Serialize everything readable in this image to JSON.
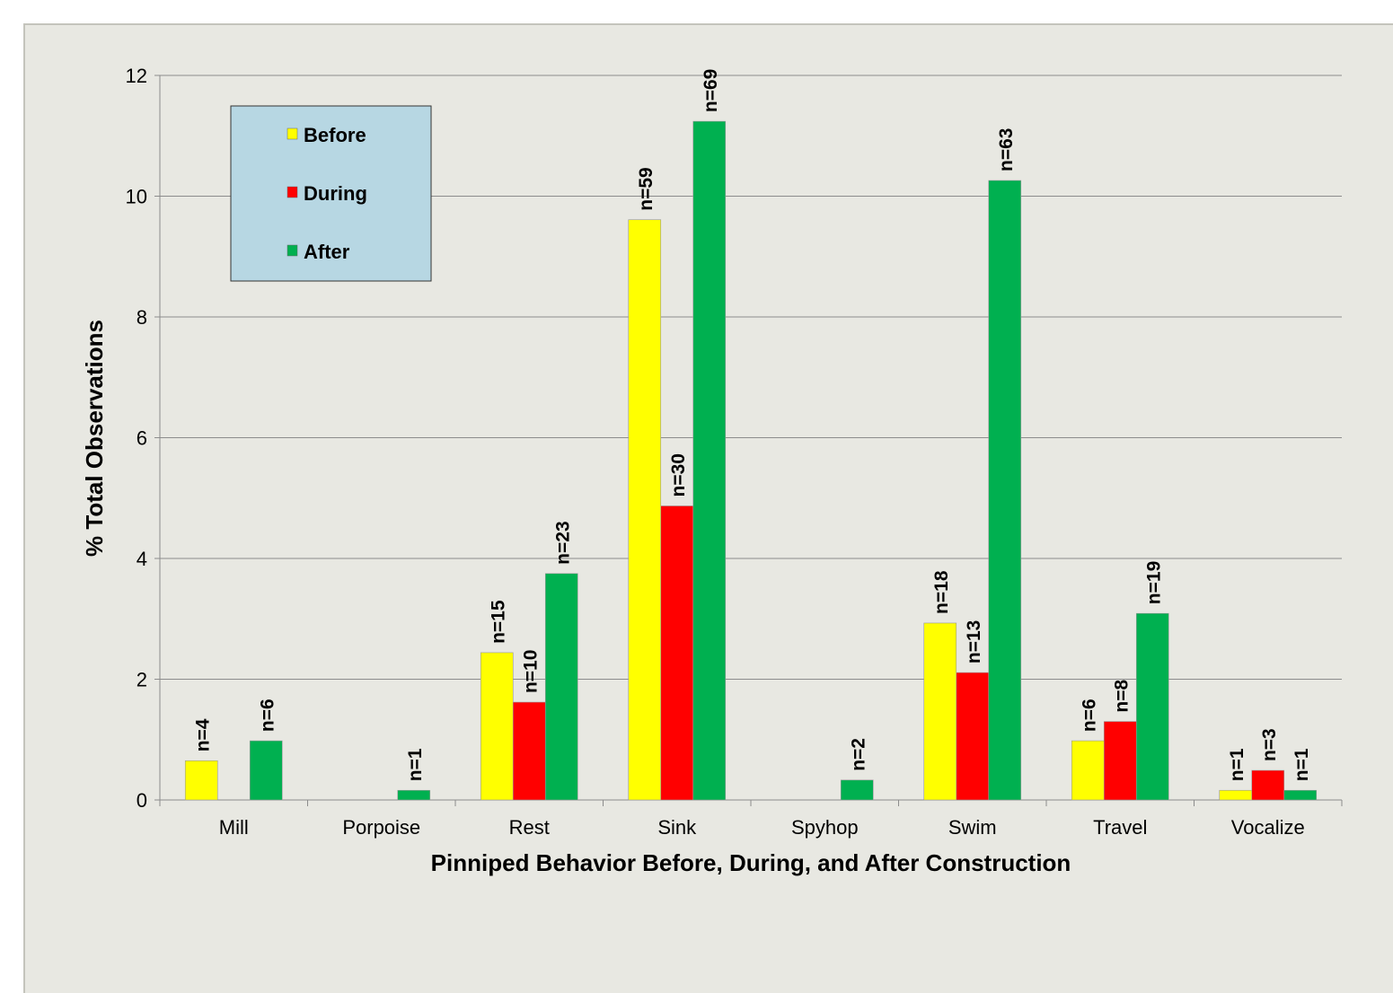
{
  "chart_data": {
    "type": "bar",
    "title": "",
    "xlabel": "Pinniped Behavior Before, During, and After Construction",
    "ylabel": "% Total Observations",
    "ylim": [
      0,
      12
    ],
    "yticks": [
      0,
      2,
      4,
      6,
      8,
      10,
      12
    ],
    "grid": true,
    "legend_position": "top-left",
    "categories": [
      "Mill",
      "Porpoise",
      "Rest",
      "Sink",
      "Spyhop",
      "Swim",
      "Travel",
      "Vocalize"
    ],
    "series": [
      {
        "name": "Before",
        "color": "#ffff00",
        "values": [
          0.65,
          0,
          2.44,
          9.61,
          0,
          2.93,
          0.98,
          0.16
        ],
        "labels": [
          "n=4",
          "",
          "n=15",
          "n=59",
          "",
          "n=18",
          "n=6",
          "n=1"
        ]
      },
      {
        "name": "During",
        "color": "#ff0000",
        "values": [
          0,
          0,
          1.62,
          4.87,
          0,
          2.11,
          1.3,
          0.49
        ],
        "labels": [
          "",
          "",
          "n=10",
          "n=30",
          "",
          "n=13",
          "n=8",
          "n=3"
        ]
      },
      {
        "name": "After",
        "color": "#00b050",
        "values": [
          0.98,
          0.16,
          3.75,
          11.24,
          0.33,
          10.26,
          3.09,
          0.16
        ],
        "labels": [
          "n=6",
          "n=1",
          "n=23",
          "n=69",
          "n=2",
          "n=63",
          "n=19",
          "n=1"
        ]
      }
    ]
  }
}
